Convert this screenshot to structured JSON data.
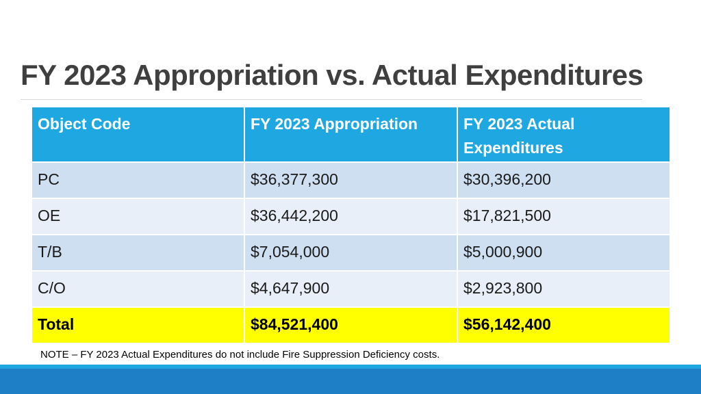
{
  "title": "FY 2023 Appropriation vs. Actual Expenditures",
  "table": {
    "headers": [
      "Object Code",
      "FY 2023 Appropriation",
      "FY 2023 Actual Expenditures"
    ],
    "rows": [
      [
        "PC",
        "$36,377,300",
        "$30,396,200"
      ],
      [
        "OE",
        "$36,442,200",
        "$17,821,500"
      ],
      [
        "T/B",
        "$7,054,000",
        "$5,000,900"
      ],
      [
        "C/O",
        "$4,647,900",
        "$2,923,800"
      ]
    ],
    "total": [
      "Total",
      "$84,521,400",
      "$56,142,400"
    ]
  },
  "note": "NOTE – FY 2023 Actual Expenditures do not include Fire Suppression Deficiency costs.",
  "colors": {
    "header": "#1fa7e1",
    "row_dark": "#cddff0",
    "row_light": "#e8eff8",
    "total_highlight": "#ffff00",
    "footer": "#1f7fc6"
  }
}
